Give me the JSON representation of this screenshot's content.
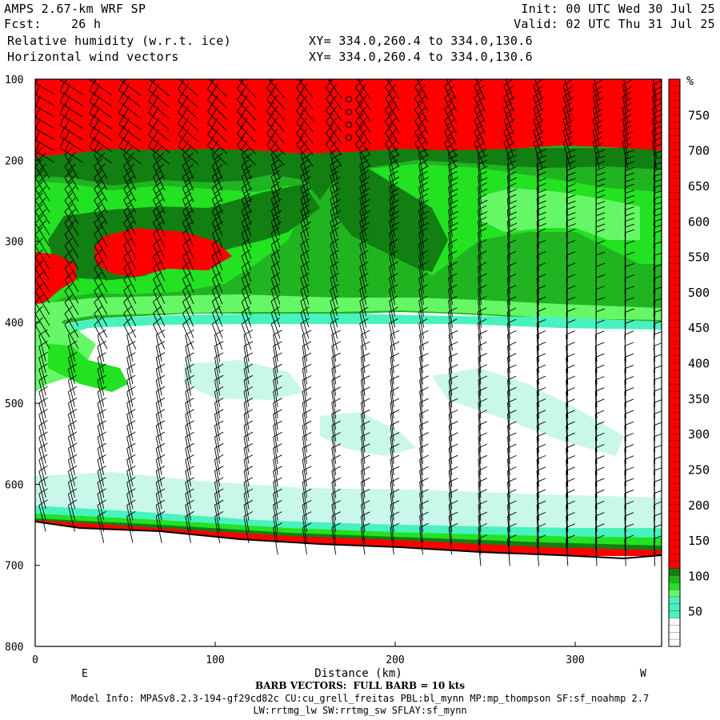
{
  "header": {
    "model": "AMPS 2.67-km WRF SP",
    "fcst": "Fcst:    26 h",
    "field1": "Relative humidity (w.r.t. ice)",
    "field2": "Horizontal wind vectors",
    "init": "Init: 00 UTC Wed 30 Jul 25",
    "valid": "Valid: 02 UTC Thu 31 Jul 25",
    "xy1": "XY= 334.0,260.4 to 334.0,130.6",
    "xy2": "XY= 334.0,260.4 to 334.0,130.6"
  },
  "footer": {
    "barb": "BARB VECTORS:  FULL BARB = 10 kts",
    "model_info": "Model Info: MPASv8.2.3-194-gf29cd82c CU:cu_grell_freitas PBL:bl_mynn MP:mp_thompson SF:sf_noahmp 2.7",
    "model_info2": "LW:rrtmg_lw SW:rrtmg_sw SFLAY:sf_mynn"
  },
  "colors": {
    "red": "#ff0000",
    "dark_green": "#127f12",
    "green": "#21b421",
    "bright_green": "#22e222",
    "light_green": "#66f766",
    "cyan": "#48f2bf",
    "pale_cyan": "#c9f7e9",
    "white": "#ffffff"
  },
  "chart_data": {
    "type": "heatmap",
    "title": "Relative humidity (w.r.t. ice)",
    "xlabel": "Distance (km)",
    "ylabel": "",
    "x_end_labels": [
      "E",
      "W"
    ],
    "xlim": [
      0,
      348
    ],
    "ylim": [
      100,
      800
    ],
    "y_inverted": true,
    "x_ticks": [
      0,
      100,
      200,
      300
    ],
    "y_ticks": [
      100,
      200,
      300,
      400,
      500,
      600,
      700,
      800
    ],
    "colorbar": {
      "unit": "%",
      "labels": [
        50,
        100,
        150,
        200,
        250,
        300,
        350,
        400,
        450,
        500,
        550,
        600,
        650,
        700,
        750
      ],
      "bands": [
        {
          "min": 0,
          "max": 40,
          "color": "#ffffff"
        },
        {
          "min": 40,
          "max": 70,
          "color": "#48f2bf"
        },
        {
          "min": 70,
          "max": 80,
          "color": "#66f766"
        },
        {
          "min": 80,
          "max": 90,
          "color": "#22e222"
        },
        {
          "min": 90,
          "max": 100,
          "color": "#21b421"
        },
        {
          "min": 100,
          "max": 110,
          "color": "#127f12"
        },
        {
          "min": 110,
          "max": 800,
          "color": "#ff0000"
        }
      ]
    },
    "terrain_surface_hpa": [
      {
        "x": 0,
        "p": 648
      },
      {
        "x": 50,
        "p": 657
      },
      {
        "x": 100,
        "p": 665
      },
      {
        "x": 150,
        "p": 672
      },
      {
        "x": 200,
        "p": 678
      },
      {
        "x": 250,
        "p": 683
      },
      {
        "x": 300,
        "p": 687
      },
      {
        "x": 348,
        "p": 690
      }
    ],
    "rh_regions_hpa": [
      {
        "name": "upper-red-layer",
        "p_top": 100,
        "p_bottom": 190,
        "value": "red"
      },
      {
        "name": "dark-green-band",
        "p_top": 190,
        "p_bottom": 215,
        "value": "dark_green"
      },
      {
        "name": "mid-moist-layer",
        "p_top": 215,
        "p_bottom": 390,
        "value": "green"
      },
      {
        "name": "red-pocket",
        "p_top": 285,
        "p_bottom": 355,
        "x_range": [
          0,
          110
        ],
        "value": "red"
      },
      {
        "name": "dry-layer",
        "p_top": 400,
        "p_bottom": 640,
        "value": "white"
      },
      {
        "name": "surface-moist-layer",
        "p_top": 640,
        "p_bottom": 690,
        "value": "cyan"
      }
    ],
    "wind_barbs": "dense barb field at every grid column from 100 to ~690 hPa; full barb = 10 kts"
  }
}
